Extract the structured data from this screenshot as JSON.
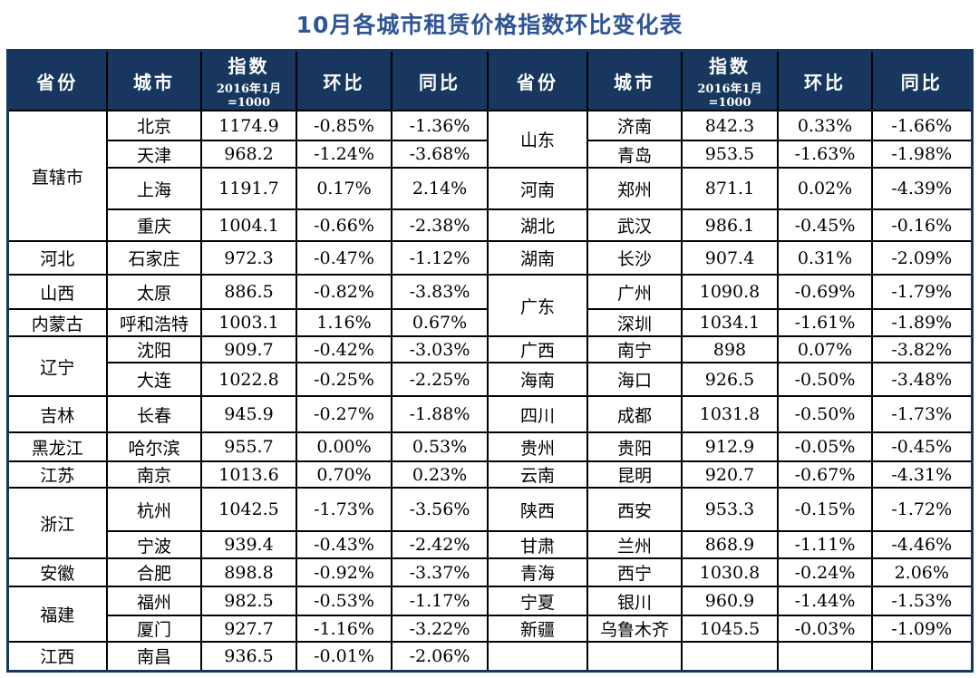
{
  "chart_data": {
    "type": "table",
    "title": "10月各城市租赁价格指数环比变化表",
    "headers": {
      "province": "省份",
      "city": "城市",
      "index": "指数",
      "index_note": "2016年1月=1000",
      "mom": "环比",
      "yoy": "同比"
    },
    "left_rows": [
      {
        "province": "直辖市",
        "province_span": 4,
        "city": "北京",
        "index": "1174.9",
        "mom": "-0.85%",
        "yoy": "-1.36%"
      },
      {
        "city": "天津",
        "index": "968.2",
        "mom": "-1.24%",
        "yoy": "-3.68%"
      },
      {
        "city": "上海",
        "index": "1191.7",
        "mom": "0.17%",
        "yoy": "2.14%"
      },
      {
        "city": "重庆",
        "index": "1004.1",
        "mom": "-0.66%",
        "yoy": "-2.38%"
      },
      {
        "province": "河北",
        "province_span": 1,
        "city": "石家庄",
        "index": "972.3",
        "mom": "-0.47%",
        "yoy": "-1.12%"
      },
      {
        "province": "山西",
        "province_span": 1,
        "city": "太原",
        "index": "886.5",
        "mom": "-0.82%",
        "yoy": "-3.83%"
      },
      {
        "province": "内蒙古",
        "province_span": 1,
        "city": "呼和浩特",
        "index": "1003.1",
        "mom": "1.16%",
        "yoy": "0.67%"
      },
      {
        "province": "辽宁",
        "province_span": 2,
        "city": "沈阳",
        "index": "909.7",
        "mom": "-0.42%",
        "yoy": "-3.03%"
      },
      {
        "city": "大连",
        "index": "1022.8",
        "mom": "-0.25%",
        "yoy": "-2.25%"
      },
      {
        "province": "吉林",
        "province_span": 1,
        "city": "长春",
        "index": "945.9",
        "mom": "-0.27%",
        "yoy": "-1.88%"
      },
      {
        "province": "黑龙江",
        "province_span": 1,
        "city": "哈尔滨",
        "index": "955.7",
        "mom": "0.00%",
        "yoy": "0.53%"
      },
      {
        "province": "江苏",
        "province_span": 1,
        "city": "南京",
        "index": "1013.6",
        "mom": "0.70%",
        "yoy": "0.23%"
      },
      {
        "province": "浙江",
        "province_span": 2,
        "city": "杭州",
        "index": "1042.5",
        "mom": "-1.73%",
        "yoy": "-3.56%"
      },
      {
        "city": "宁波",
        "index": "939.4",
        "mom": "-0.43%",
        "yoy": "-2.42%"
      },
      {
        "province": "安徽",
        "province_span": 1,
        "city": "合肥",
        "index": "898.8",
        "mom": "-0.92%",
        "yoy": "-3.37%"
      },
      {
        "province": "福建",
        "province_span": 2,
        "city": "福州",
        "index": "982.5",
        "mom": "-0.53%",
        "yoy": "-1.17%"
      },
      {
        "city": "厦门",
        "index": "927.7",
        "mom": "-1.16%",
        "yoy": "-3.22%"
      },
      {
        "province": "江西",
        "province_span": 1,
        "city": "南昌",
        "index": "936.5",
        "mom": "-0.01%",
        "yoy": "-2.06%"
      }
    ],
    "right_rows": [
      {
        "province": "山东",
        "province_span": 2,
        "city": "济南",
        "index": "842.3",
        "mom": "0.33%",
        "yoy": "-1.66%"
      },
      {
        "city": "青岛",
        "index": "953.5",
        "mom": "-1.63%",
        "yoy": "-1.98%"
      },
      {
        "province": "河南",
        "province_span": 1,
        "city": "郑州",
        "index": "871.1",
        "mom": "0.02%",
        "yoy": "-4.39%"
      },
      {
        "province": "湖北",
        "province_span": 1,
        "city": "武汉",
        "index": "986.1",
        "mom": "-0.45%",
        "yoy": "-0.16%"
      },
      {
        "province": "湖南",
        "province_span": 1,
        "city": "长沙",
        "index": "907.4",
        "mom": "0.31%",
        "yoy": "-2.09%"
      },
      {
        "province": "广东",
        "province_span": 2,
        "city": "广州",
        "index": "1090.8",
        "mom": "-0.69%",
        "yoy": "-1.79%"
      },
      {
        "city": "深圳",
        "index": "1034.1",
        "mom": "-1.61%",
        "yoy": "-1.89%"
      },
      {
        "province": "广西",
        "province_span": 1,
        "city": "南宁",
        "index": "898",
        "mom": "0.07%",
        "yoy": "-3.82%"
      },
      {
        "province": "海南",
        "province_span": 1,
        "city": "海口",
        "index": "926.5",
        "mom": "-0.50%",
        "yoy": "-3.48%"
      },
      {
        "province": "四川",
        "province_span": 1,
        "city": "成都",
        "index": "1031.8",
        "mom": "-0.50%",
        "yoy": "-1.73%"
      },
      {
        "province": "贵州",
        "province_span": 1,
        "city": "贵阳",
        "index": "912.9",
        "mom": "-0.05%",
        "yoy": "-0.45%"
      },
      {
        "province": "云南",
        "province_span": 1,
        "city": "昆明",
        "index": "920.7",
        "mom": "-0.67%",
        "yoy": "-4.31%"
      },
      {
        "province": "陕西",
        "province_span": 1,
        "city": "西安",
        "index": "953.3",
        "mom": "-0.15%",
        "yoy": "-1.72%"
      },
      {
        "province": "甘肃",
        "province_span": 1,
        "city": "兰州",
        "index": "868.9",
        "mom": "-1.11%",
        "yoy": "-4.46%"
      },
      {
        "province": "青海",
        "province_span": 1,
        "city": "西宁",
        "index": "1030.8",
        "mom": "-0.24%",
        "yoy": "2.06%"
      },
      {
        "province": "宁夏",
        "province_span": 1,
        "city": "银川",
        "index": "960.9",
        "mom": "-1.44%",
        "yoy": "-1.53%"
      },
      {
        "province": "新疆",
        "province_span": 1,
        "city": "乌鲁木齐",
        "index": "1045.5",
        "mom": "-0.03%",
        "yoy": "-1.09%"
      },
      {
        "province": "",
        "province_span": 1,
        "city": "",
        "index": "",
        "mom": "",
        "yoy": ""
      }
    ]
  },
  "colors": {
    "header_bg": "#17375E",
    "header_text": "#FFFFFF",
    "title_text": "#2F5597",
    "grid_line": "#000000",
    "outer_border": "#17375E"
  }
}
